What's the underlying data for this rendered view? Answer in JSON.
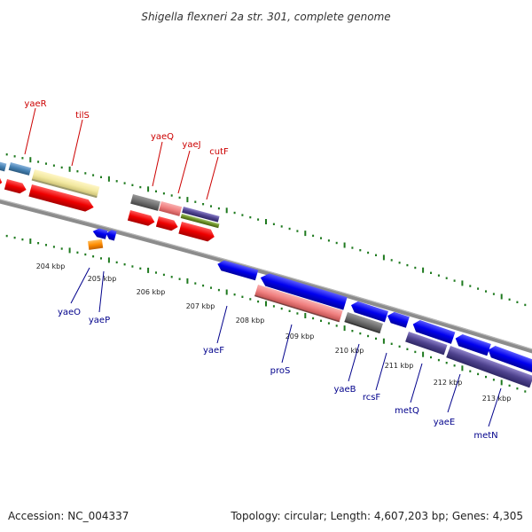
{
  "title": "Shigella flexneri 2a str. 301, complete genome",
  "footer": {
    "accession": "Accession: NC_004337",
    "summary": "Topology: circular; Length: 4,607,203 bp; Genes: 4,305"
  },
  "colors": {
    "forward_label": "#cc0000",
    "reverse_label": "#00008b",
    "backbone": "#8c8c8c",
    "ticks": "#1f7a1f"
  },
  "scale_labels": [
    "204 kbp",
    "205 kbp",
    "206 kbp",
    "207 kbp",
    "208 kbp",
    "209 kbp",
    "210 kbp",
    "211 kbp",
    "212 kbp",
    "213 kbp"
  ],
  "forward_genes": [
    {
      "name": "yaeR"
    },
    {
      "name": "tilS"
    },
    {
      "name": "yaeQ"
    },
    {
      "name": "yaeJ"
    },
    {
      "name": "cutF"
    }
  ],
  "reverse_genes": [
    {
      "name": "yaeO"
    },
    {
      "name": "yaeP"
    },
    {
      "name": "yaeF"
    },
    {
      "name": "proS"
    },
    {
      "name": "yaeB"
    },
    {
      "name": "rcsF"
    },
    {
      "name": "metQ"
    },
    {
      "name": "yaeE"
    },
    {
      "name": "metN"
    }
  ]
}
